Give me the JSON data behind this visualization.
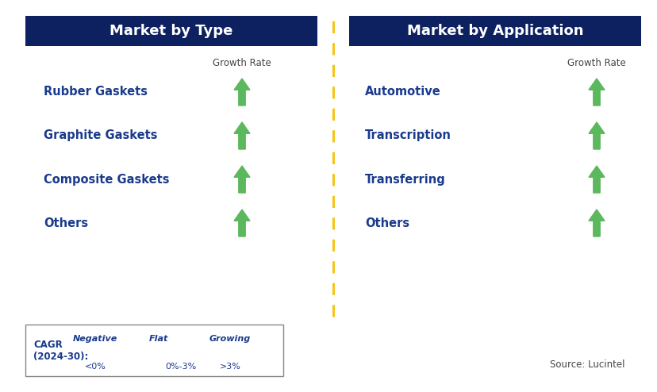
{
  "title_left": "Market by Type",
  "title_right": "Market by Application",
  "header_bg_color": "#0d2060",
  "header_text_color": "#ffffff",
  "left_items": [
    "Rubber Gaskets",
    "Graphite Gaskets",
    "Composite Gaskets",
    "Others"
  ],
  "right_items": [
    "Automotive",
    "Transcription",
    "Transferring",
    "Others"
  ],
  "item_text_color": "#1a3a8c",
  "growth_rate_label": "Growth Rate",
  "growth_rate_text_color": "#444444",
  "arrow_up_color": "#5cb85c",
  "dashed_line_color": "#f5c518",
  "legend_cagr_label": "CAGR\n(2024-30):",
  "legend_negative_label": "Negative",
  "legend_negative_sub": "<0%",
  "legend_flat_label": "Flat",
  "legend_flat_sub": "0%-3%",
  "legend_growing_label": "Growing",
  "legend_growing_sub": ">3%",
  "legend_neg_arrow_color": "#cc0000",
  "legend_flat_arrow_color": "#f5a800",
  "legend_grow_arrow_color": "#5cb85c",
  "source_text": "Source: Lucintel",
  "bg_color": "#ffffff",
  "fig_width": 8.29,
  "fig_height": 4.94,
  "dpi": 100
}
